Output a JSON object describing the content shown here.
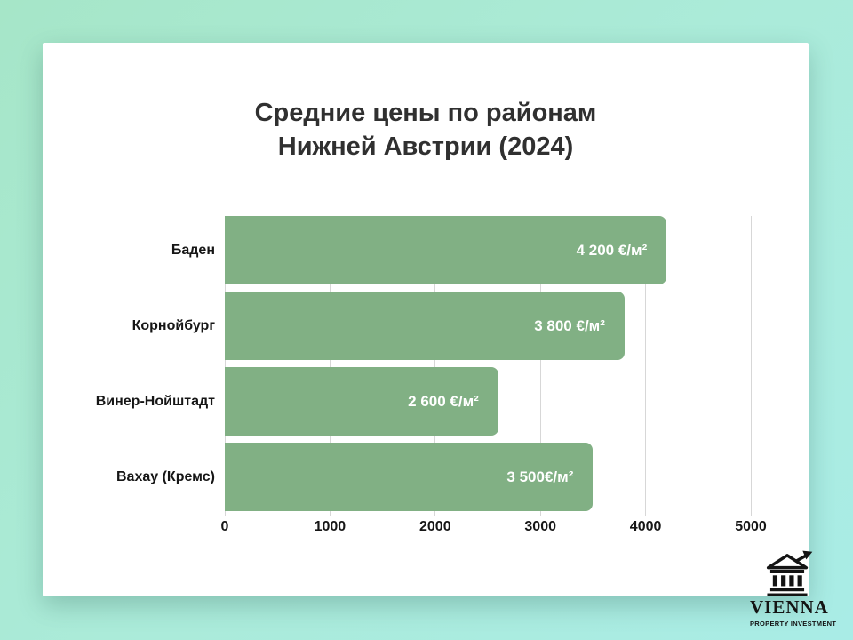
{
  "card": {
    "title": "Средние цены по районам\nНижней Австрии (2024)"
  },
  "chart_data": {
    "type": "bar",
    "orientation": "horizontal",
    "title": "Средние цены по районам Нижней Австрии (2024)",
    "categories": [
      "Баден",
      "Корнойбург",
      "Винер-Нойштадт",
      "Вахау (Кремс)"
    ],
    "values": [
      4200,
      3800,
      2600,
      3500
    ],
    "value_labels": [
      "4 200 €/м²",
      "3 800 €/м²",
      "2 600 €/м²",
      "3 500€/м²"
    ],
    "unit": "€/м²",
    "xlim": [
      0,
      5000
    ],
    "x_ticks": [
      0,
      1000,
      2000,
      3000,
      4000,
      5000
    ],
    "grid": "vertical",
    "legend": "none",
    "bar_color": "#81b084",
    "value_label_color": "#ffffff"
  },
  "logo": {
    "name": "VIENNA",
    "subtitle": "PROPERTY INVESTMENT",
    "icon": "building-growth-icon"
  },
  "colors": {
    "background_gradient_start": "#a6e6c8",
    "background_gradient_end": "#a9ece6",
    "card_background": "#ffffff",
    "bar": "#81b084",
    "title_text": "#303030",
    "axis_text": "#161616",
    "gridline": "#d7d7d7",
    "logo_text": "#141414"
  }
}
